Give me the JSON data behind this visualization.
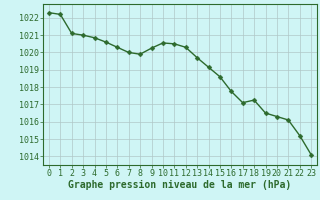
{
  "x": [
    0,
    1,
    2,
    3,
    4,
    5,
    6,
    7,
    8,
    9,
    10,
    11,
    12,
    13,
    14,
    15,
    16,
    17,
    18,
    19,
    20,
    21,
    22,
    23
  ],
  "y": [
    1022.3,
    1022.2,
    1021.1,
    1021.0,
    1020.85,
    1020.6,
    1020.3,
    1020.0,
    1019.9,
    1020.25,
    1020.55,
    1020.5,
    1020.3,
    1019.7,
    1019.15,
    1018.6,
    1017.75,
    1017.1,
    1017.25,
    1016.5,
    1016.3,
    1016.1,
    1015.2,
    1014.1
  ],
  "line_color": "#2d6a2d",
  "marker": "D",
  "marker_size": 2.5,
  "linewidth": 1.0,
  "bg_color": "#cff5f5",
  "grid_color": "#b0c8c8",
  "xlabel": "Graphe pression niveau de la mer (hPa)",
  "xlabel_fontsize": 7,
  "xlabel_color": "#2d6a2d",
  "ylim": [
    1013.5,
    1022.8
  ],
  "xlim": [
    -0.5,
    23.5
  ],
  "yticks": [
    1014,
    1015,
    1016,
    1017,
    1018,
    1019,
    1020,
    1021,
    1022
  ],
  "xticks": [
    0,
    1,
    2,
    3,
    4,
    5,
    6,
    7,
    8,
    9,
    10,
    11,
    12,
    13,
    14,
    15,
    16,
    17,
    18,
    19,
    20,
    21,
    22,
    23
  ],
  "tick_fontsize": 6,
  "tick_color": "#2d6a2d",
  "spine_color": "#2d6a2d"
}
